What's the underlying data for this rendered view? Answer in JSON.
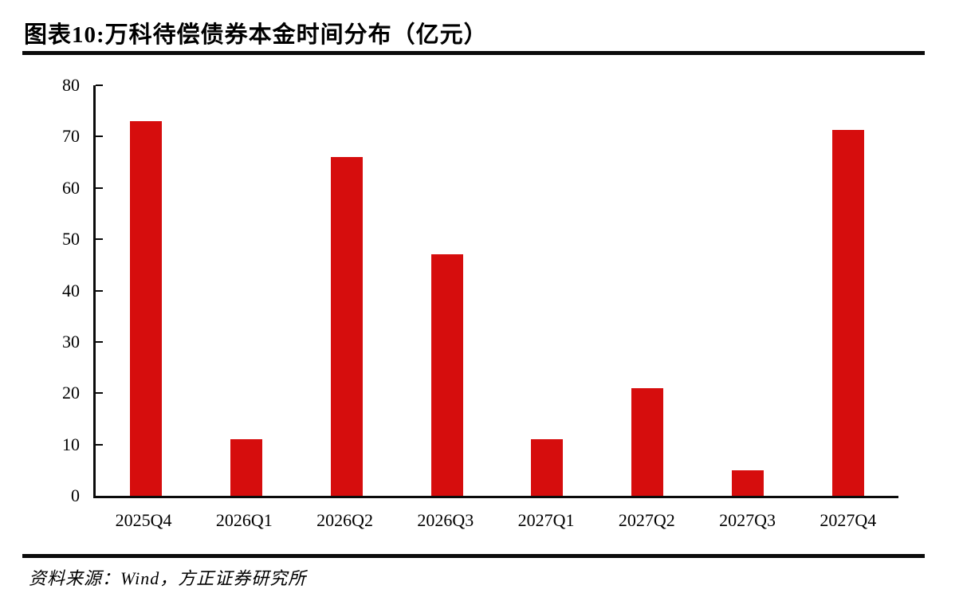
{
  "figure": {
    "title": "图表10:万科待偿债券本金时间分布（亿元）",
    "source": "资料来源：Wind，方正证券研究所"
  },
  "chart_data": {
    "type": "bar",
    "title": "万科待偿债券本金时间分布（亿元）",
    "unit": "亿元",
    "categories": [
      "2025Q4",
      "2026Q1",
      "2026Q2",
      "2026Q3",
      "2027Q1",
      "2027Q2",
      "2027Q3",
      "2027Q4"
    ],
    "values": [
      73,
      11,
      66,
      47,
      11,
      21,
      5,
      71.3
    ],
    "ylim": [
      0,
      80
    ],
    "yticks": [
      0,
      10,
      20,
      30,
      40,
      50,
      60,
      70,
      80
    ],
    "bar_color": "#d60d0d",
    "axis_color": "#0b0b0b",
    "grid": false,
    "legend": false
  }
}
